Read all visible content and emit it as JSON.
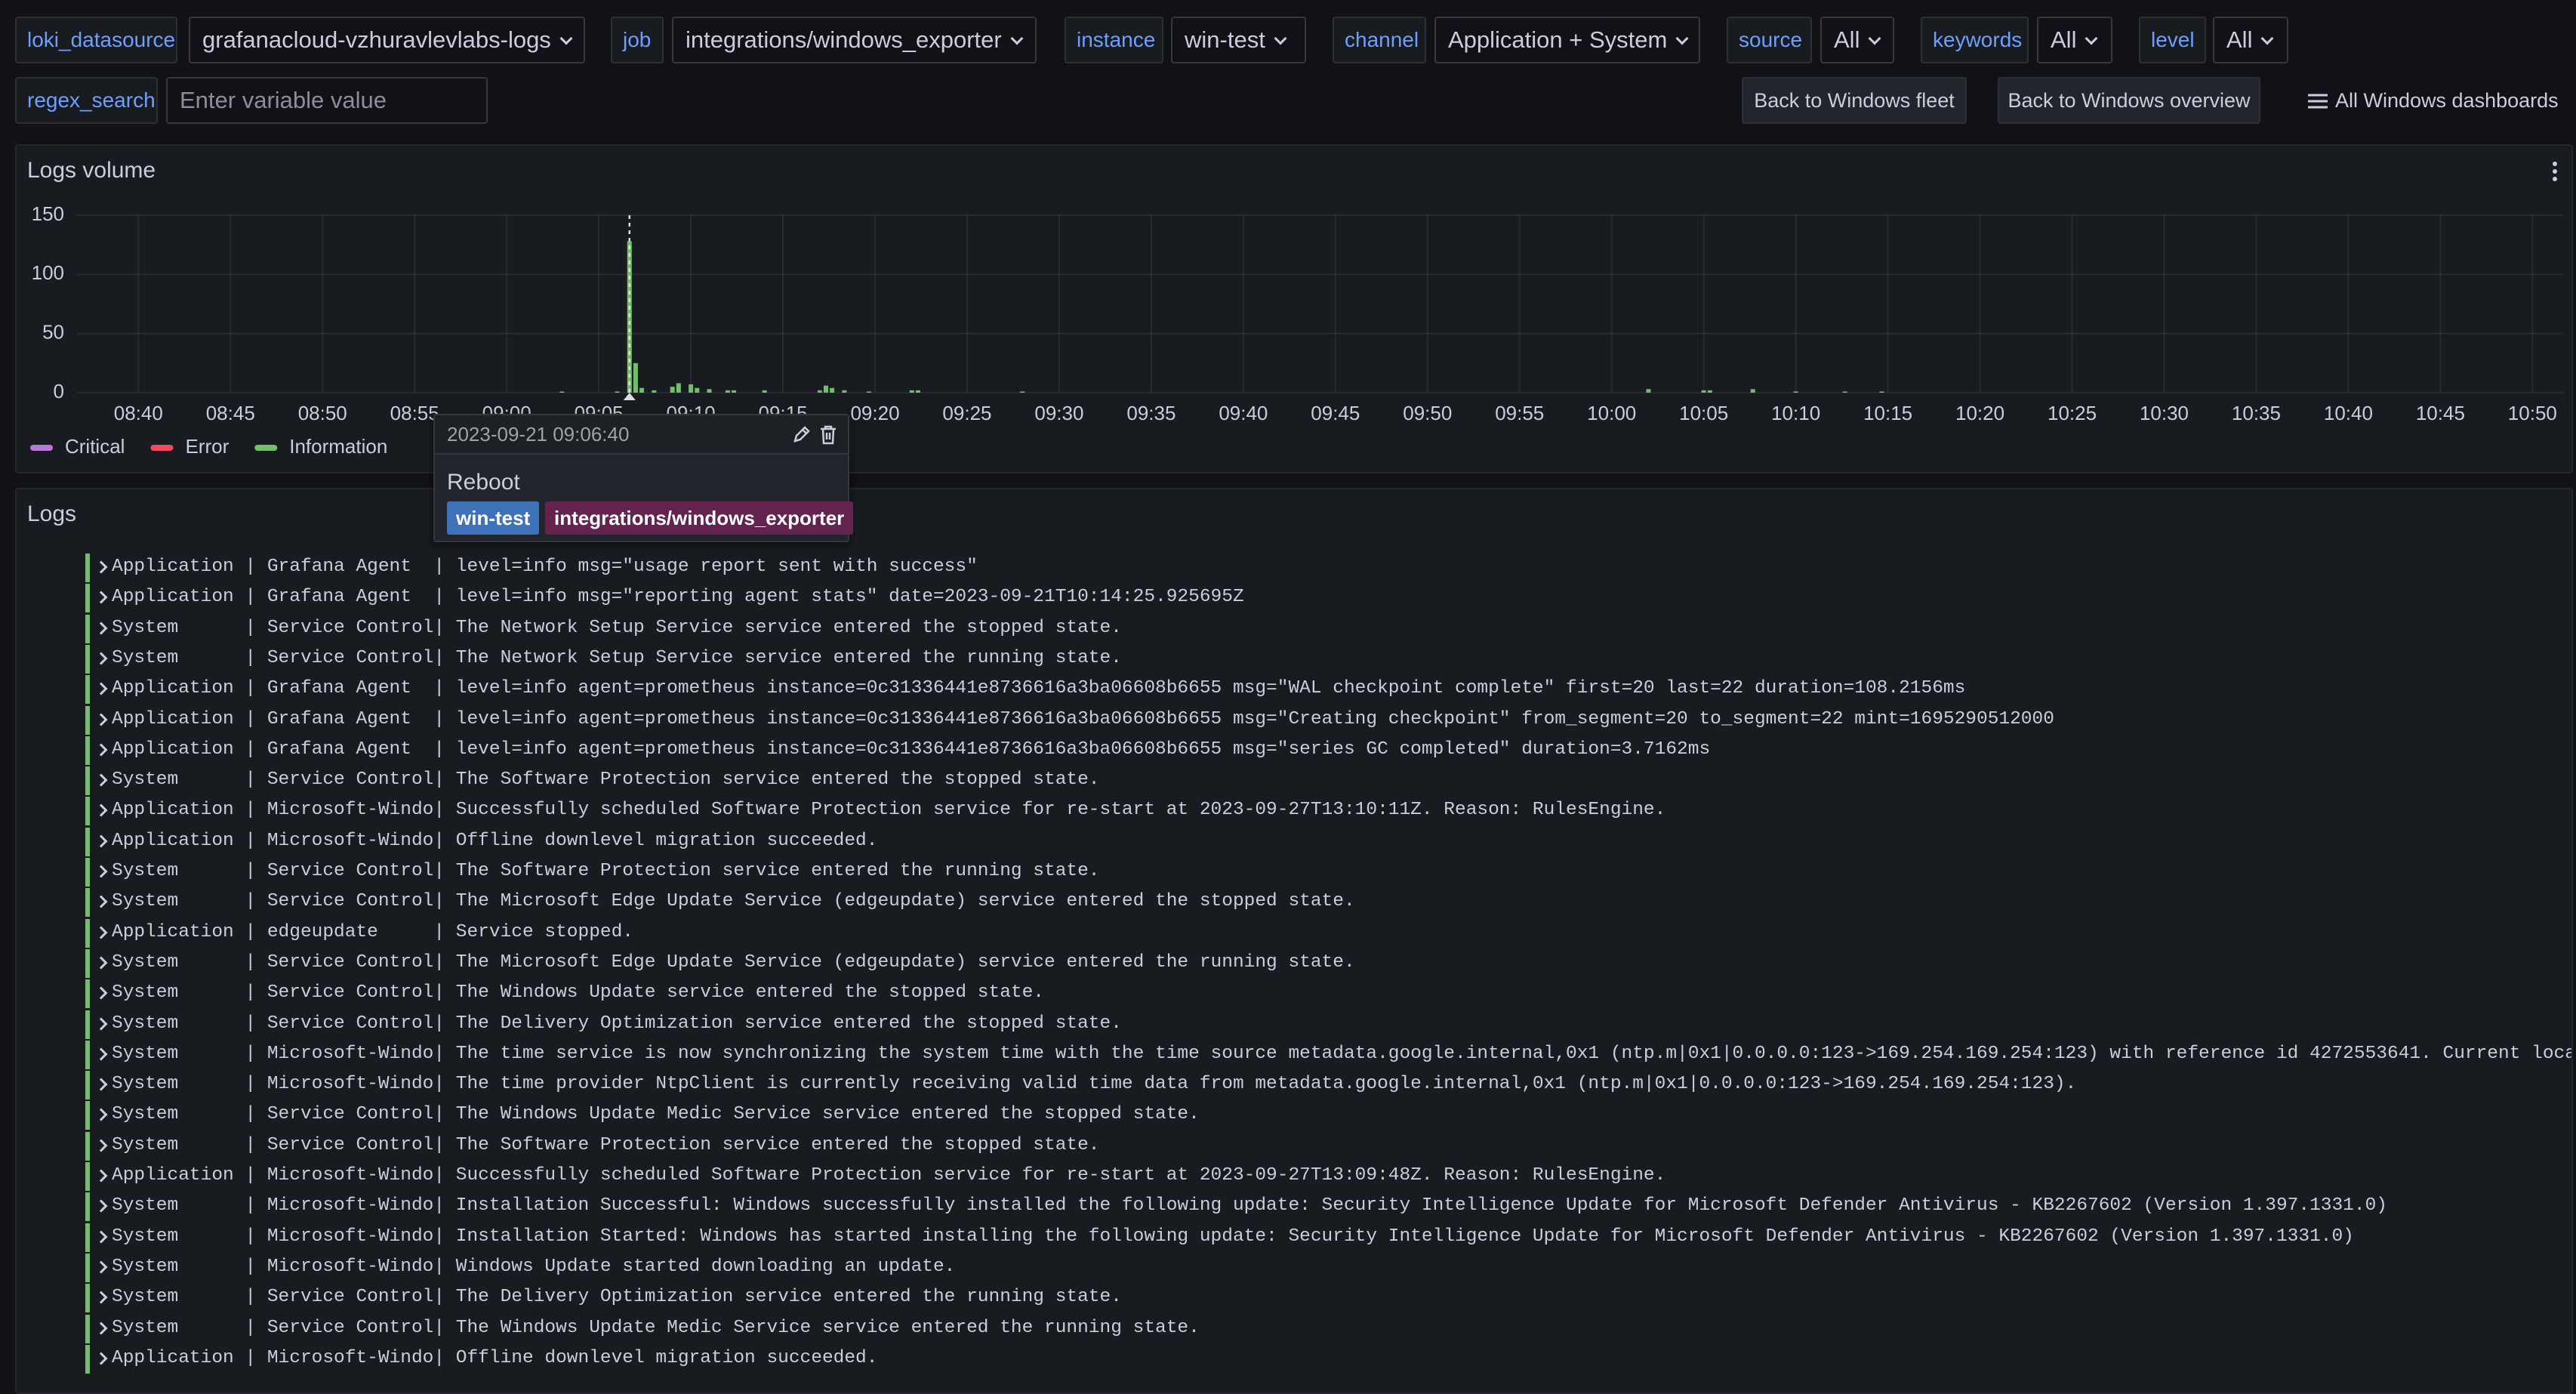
{
  "variables": [
    {
      "label": "loki_datasource",
      "value": "grafanacloud-vzhuravlevlabs-logs"
    },
    {
      "label": "job",
      "value": "integrations/windows_exporter"
    },
    {
      "label": "instance",
      "value": "win-test"
    },
    {
      "label": "channel",
      "value": "Application + System"
    },
    {
      "label": "source",
      "value": "All"
    },
    {
      "label": "keywords",
      "value": "All"
    },
    {
      "label": "level",
      "value": "All"
    }
  ],
  "regex_search": {
    "label": "regex_search",
    "placeholder": "Enter variable value"
  },
  "links": [
    "Back to Windows fleet",
    "Back to Windows overview",
    "All Windows dashboards"
  ],
  "chart_data": {
    "type": "bar",
    "title": "Logs volume",
    "x": [
      "09:03:00",
      "09:06:00",
      "09:06:40",
      "09:07:00",
      "09:07:20",
      "09:08:00",
      "09:09:00",
      "09:09:20",
      "09:10:00",
      "09:10:20",
      "09:11:00",
      "09:12:00",
      "09:12:20",
      "09:14:00",
      "09:17:00",
      "09:17:20",
      "09:17:40",
      "09:18:20",
      "09:19:40",
      "09:22:00",
      "09:22:20",
      "09:28:00",
      "10:02:00",
      "10:05:00",
      "10:05:20",
      "10:07:40",
      "10:10:00",
      "10:12:40",
      "10:14:40"
    ],
    "series": [
      {
        "name": "Critical",
        "color": "#b877d9",
        "values": [
          null,
          null,
          null,
          null,
          null,
          null,
          null,
          null,
          null,
          null,
          null,
          null,
          null,
          null,
          null,
          null,
          null,
          null,
          null,
          null,
          null,
          null,
          null,
          null,
          null,
          null,
          null,
          null,
          null
        ]
      },
      {
        "name": "Error",
        "color": "#f2495c",
        "values": [
          null,
          null,
          null,
          null,
          null,
          null,
          null,
          null,
          null,
          null,
          null,
          null,
          null,
          null,
          null,
          null,
          null,
          null,
          null,
          null,
          null,
          null,
          null,
          null,
          null,
          null,
          null,
          null,
          null
        ]
      },
      {
        "name": "Information",
        "color": "#73bf69",
        "values": [
          1,
          1,
          128,
          25,
          4,
          2,
          5,
          8,
          7,
          4,
          3,
          2,
          2,
          2,
          2,
          6,
          4,
          2,
          1,
          2,
          2,
          1,
          3,
          2,
          2,
          3,
          1,
          1,
          1
        ]
      }
    ],
    "xlim": [
      "08:36:40",
      "10:51:40"
    ],
    "xticks": [
      "08:40",
      "08:45",
      "08:50",
      "08:55",
      "09:00",
      "09:05",
      "09:10",
      "09:15",
      "09:20",
      "09:25",
      "09:30",
      "09:35",
      "09:40",
      "09:45",
      "09:50",
      "09:55",
      "10:00",
      "10:05",
      "10:10",
      "10:15",
      "10:20",
      "10:25",
      "10:30",
      "10:35",
      "10:40",
      "10:45",
      "10:50"
    ],
    "ylim": [
      0,
      150
    ],
    "yticks": [
      0,
      50,
      100,
      150
    ],
    "grid": true
  },
  "annotation": {
    "time": "2023-09-21 09:06:40",
    "text": "Reboot",
    "tags": [
      "win-test",
      "integrations/windows_exporter"
    ]
  },
  "logs": {
    "title": "Logs",
    "lines": [
      "Application | Grafana Agent  | level=info msg=\"usage report sent with success\"",
      "Application | Grafana Agent  | level=info msg=\"reporting agent stats\" date=2023-09-21T10:14:25.925695Z",
      "System      | Service Control| The Network Setup Service service entered the stopped state.",
      "System      | Service Control| The Network Setup Service service entered the running state.",
      "Application | Grafana Agent  | level=info agent=prometheus instance=0c31336441e8736616a3ba06608b6655 msg=\"WAL checkpoint complete\" first=20 last=22 duration=108.2156ms",
      "Application | Grafana Agent  | level=info agent=prometheus instance=0c31336441e8736616a3ba06608b6655 msg=\"Creating checkpoint\" from_segment=20 to_segment=22 mint=1695290512000",
      "Application | Grafana Agent  | level=info agent=prometheus instance=0c31336441e8736616a3ba06608b6655 msg=\"series GC completed\" duration=3.7162ms",
      "System      | Service Control| The Software Protection service entered the stopped state.",
      "Application | Microsoft-Windo| Successfully scheduled Software Protection service for re-start at 2023-09-27T13:10:11Z. Reason: RulesEngine.",
      "Application | Microsoft-Windo| Offline downlevel migration succeeded.",
      "System      | Service Control| The Software Protection service entered the running state.",
      "System      | Service Control| The Microsoft Edge Update Service (edgeupdate) service entered the stopped state.",
      "Application | edgeupdate     | Service stopped.",
      "System      | Service Control| The Microsoft Edge Update Service (edgeupdate) service entered the running state.",
      "System      | Service Control| The Windows Update service entered the stopped state.",
      "System      | Service Control| The Delivery Optimization service entered the stopped state.",
      "System      | Microsoft-Windo| The time service is now synchronizing the system time with the time source metadata.google.internal,0x1 (ntp.m|0x1|0.0.0.0:123->169.254.169.254:123) with reference id 4272553641. Current loca",
      "System      | Microsoft-Windo| The time provider NtpClient is currently receiving valid time data from metadata.google.internal,0x1 (ntp.m|0x1|0.0.0.0:123->169.254.169.254:123).",
      "System      | Service Control| The Windows Update Medic Service service entered the stopped state.",
      "System      | Service Control| The Software Protection service entered the stopped state.",
      "Application | Microsoft-Windo| Successfully scheduled Software Protection service for re-start at 2023-09-27T13:09:48Z. Reason: RulesEngine.",
      "System      | Microsoft-Windo| Installation Successful: Windows successfully installed the following update: Security Intelligence Update for Microsoft Defender Antivirus - KB2267602 (Version 1.397.1331.0)",
      "System      | Microsoft-Windo| Installation Started: Windows has started installing the following update: Security Intelligence Update for Microsoft Defender Antivirus - KB2267602 (Version 1.397.1331.0)",
      "System      | Microsoft-Windo| Windows Update started downloading an update.",
      "System      | Service Control| The Delivery Optimization service entered the running state.",
      "System      | Service Control| The Windows Update Medic Service service entered the running state.",
      "Application | Microsoft-Windo| Offline downlevel migration succeeded."
    ]
  }
}
